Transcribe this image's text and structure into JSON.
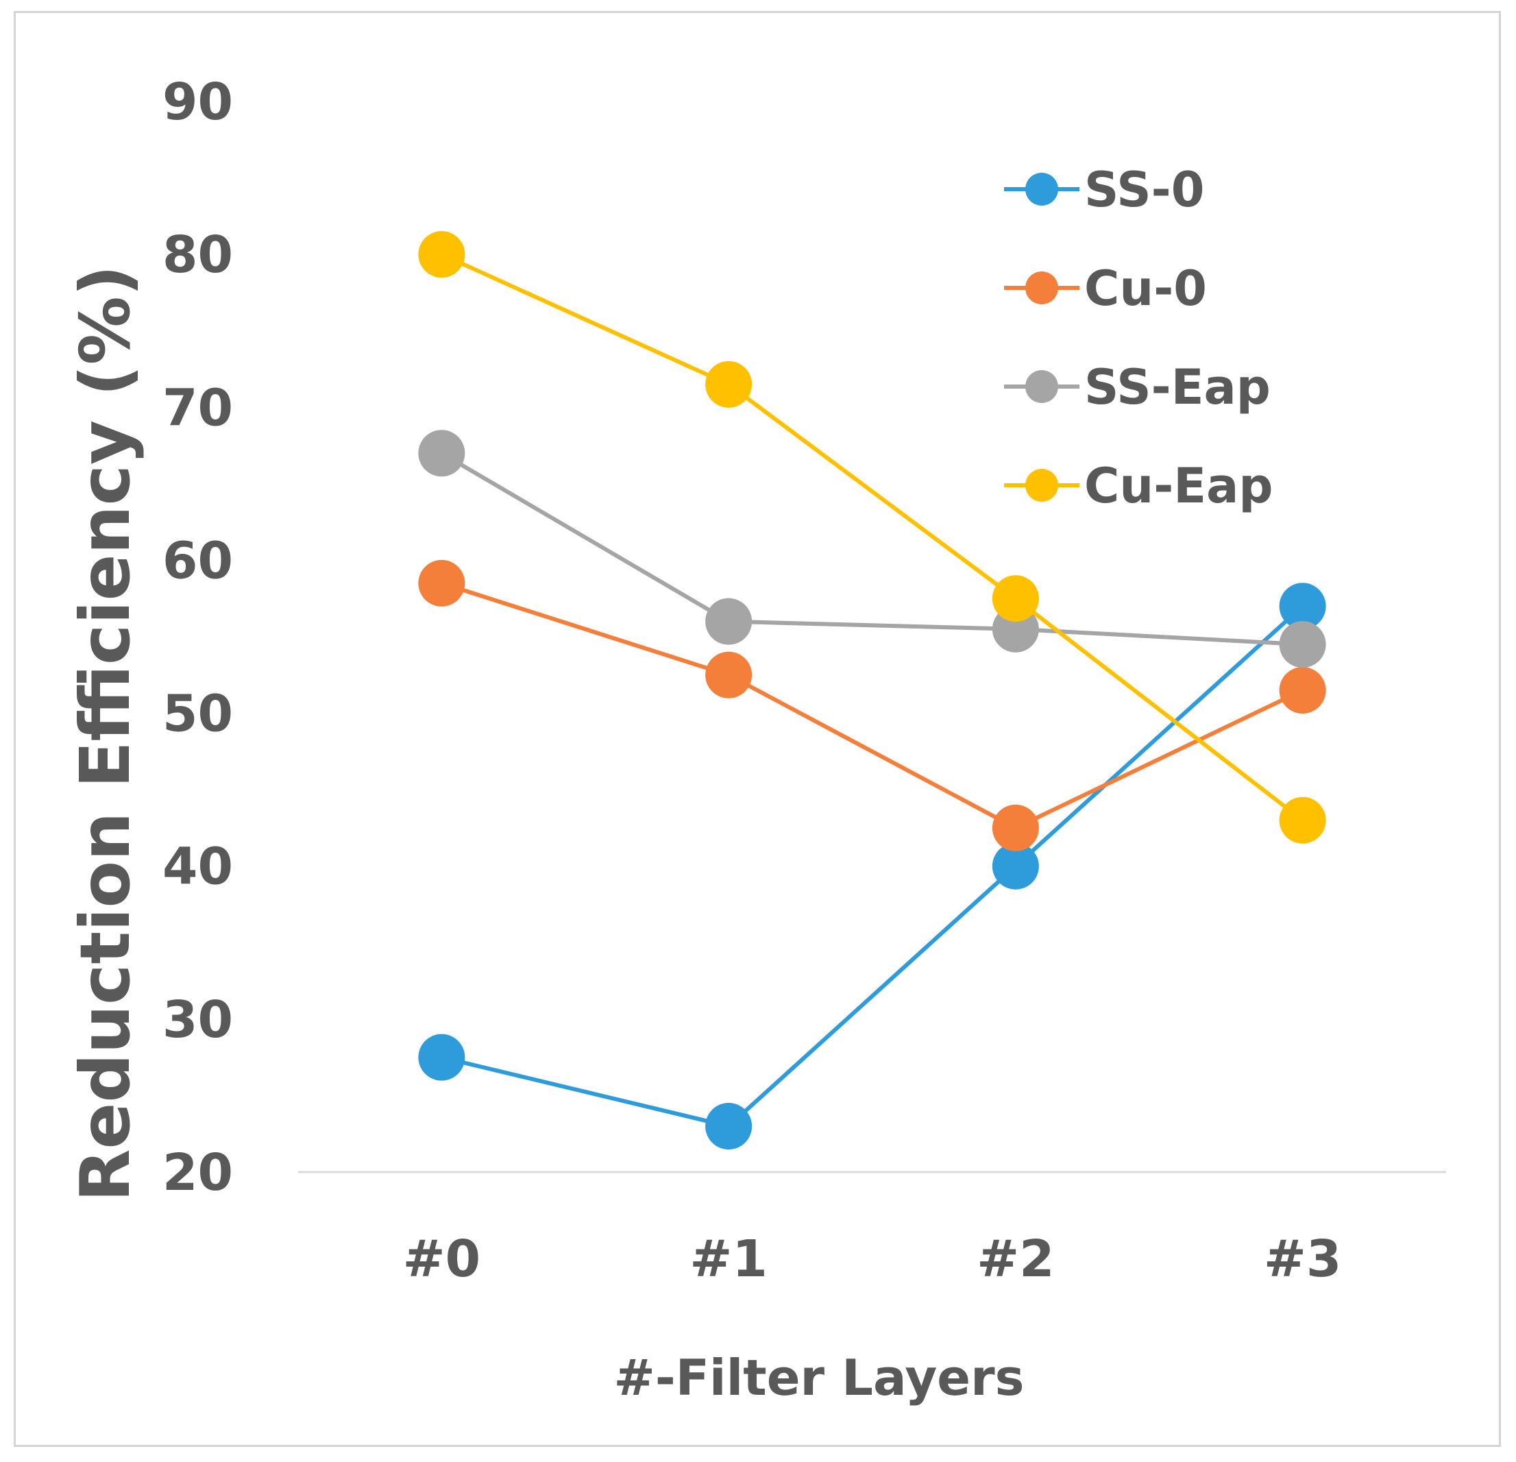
{
  "chart_data": {
    "type": "line",
    "title": "",
    "xlabel": "#-Filter Layers",
    "ylabel": "Reduction Efficiency (%)",
    "categories": [
      "#0",
      "#1",
      "#2",
      "#3"
    ],
    "ylim": [
      20,
      90
    ],
    "yticks": [
      20,
      30,
      40,
      50,
      60,
      70,
      80,
      90
    ],
    "grid": false,
    "legend_position": "top-right",
    "series": [
      {
        "name": "SS-0",
        "color": "#2E9BDB",
        "values": [
          27.5,
          23,
          40,
          57
        ]
      },
      {
        "name": "Cu-0",
        "color": "#F47F3B",
        "values": [
          58.5,
          52.5,
          42.5,
          51.5
        ]
      },
      {
        "name": "SS-Eap",
        "color": "#A5A5A5",
        "values": [
          67,
          56,
          55.5,
          54.5
        ]
      },
      {
        "name": "Cu-Eap",
        "color": "#FFC000",
        "values": [
          80,
          71.5,
          57.5,
          43
        ]
      }
    ]
  }
}
